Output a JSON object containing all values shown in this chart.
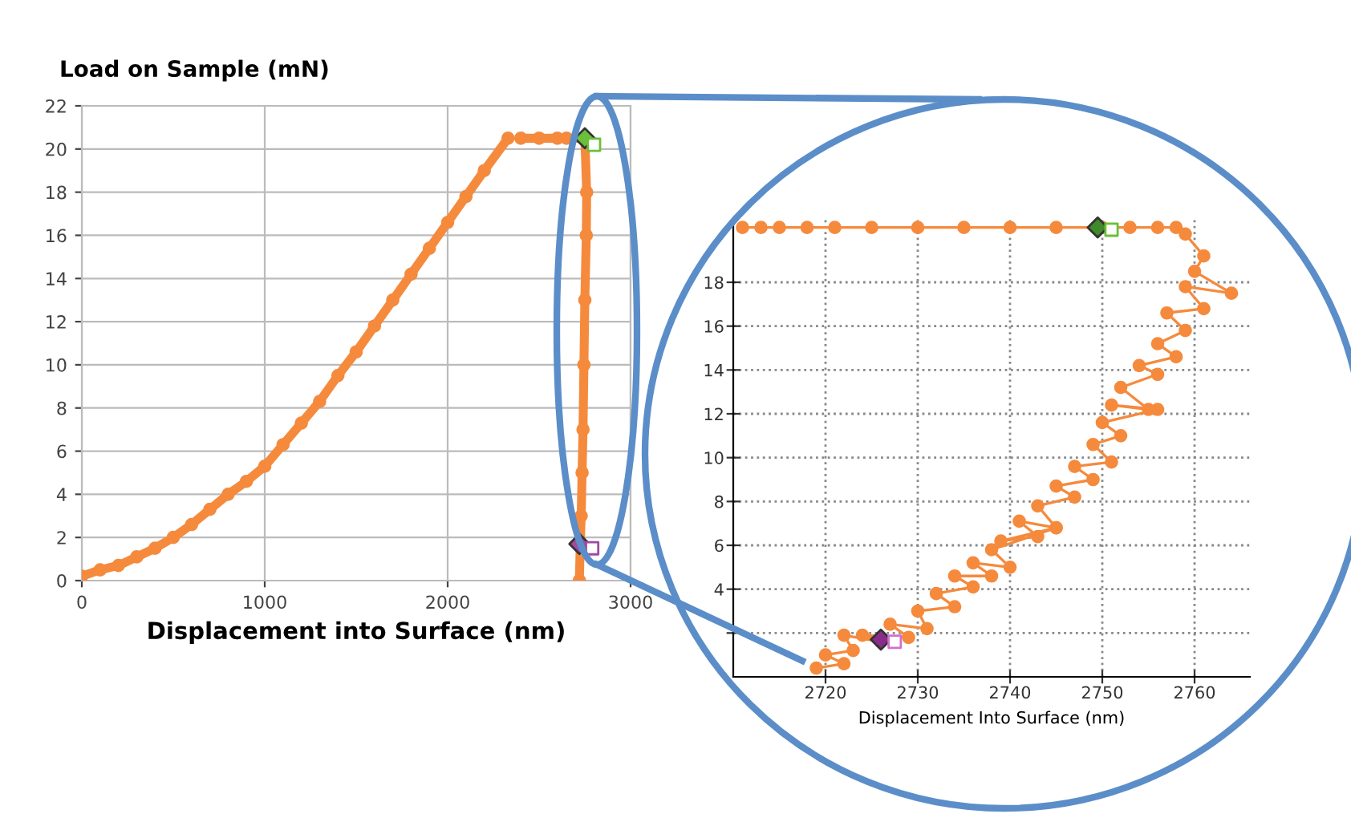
{
  "chart_data": [
    {
      "type": "line",
      "ylabel": "Load on Sample (mN)",
      "xlabel": "Displacement into Surface (nm)",
      "xlim": [
        0,
        3000
      ],
      "ylim": [
        0,
        22
      ],
      "xticks": [
        0,
        1000,
        2000,
        3000
      ],
      "yticks": [
        0,
        2,
        4,
        6,
        8,
        10,
        12,
        14,
        16,
        18,
        20,
        22
      ],
      "grid": true,
      "marker": "circle",
      "line_style": "solid",
      "series": [
        {
          "color": "#f58a3d",
          "x": [
            0,
            100,
            200,
            300,
            400,
            500,
            600,
            700,
            800,
            900,
            1000,
            1100,
            1200,
            1300,
            1400,
            1500,
            1600,
            1700,
            1800,
            1900,
            2000,
            2100,
            2200,
            2330,
            2370,
            2400,
            2500,
            2600,
            2650,
            2750,
            2760,
            2758,
            2750,
            2745,
            2740,
            2735,
            2730,
            2725,
            2720
          ],
          "values": [
            0.2,
            0.5,
            0.7,
            1.1,
            1.5,
            2.0,
            2.6,
            3.3,
            4.0,
            4.6,
            5.3,
            6.3,
            7.3,
            8.3,
            9.5,
            10.6,
            11.8,
            13.0,
            14.2,
            15.4,
            16.6,
            17.8,
            19.0,
            20.5,
            null,
            20.5,
            20.5,
            20.5,
            20.5,
            20.5,
            18,
            16,
            13,
            10,
            7,
            5,
            3,
            1.7,
            0
          ]
        },
        {
          "type": "scatter",
          "marker": "diamond",
          "color": "#6abf3b",
          "x": [
            2750
          ],
          "values": [
            20.5
          ]
        },
        {
          "type": "scatter",
          "marker": "square",
          "color": "#6abf3b",
          "x": [
            2800
          ],
          "values": [
            20.2
          ]
        },
        {
          "type": "scatter",
          "marker": "diamond",
          "color": "#a04aa0",
          "x": [
            2720
          ],
          "values": [
            1.7
          ]
        },
        {
          "type": "scatter",
          "marker": "square",
          "color": "#a04aa0",
          "x": [
            2790
          ],
          "values": [
            1.5
          ]
        }
      ]
    },
    {
      "type": "line",
      "xlabel": "Displacement Into Surface (nm)",
      "xlim": [
        2710,
        2766
      ],
      "ylim": [
        0,
        21
      ],
      "xticks": [
        2720,
        2730,
        2740,
        2750,
        2760
      ],
      "yticks": [
        {
          "value": 2,
          "label": null
        },
        4,
        6,
        8,
        10,
        12,
        14,
        16,
        18
      ],
      "grid": true,
      "marker": "circle",
      "line_style": "solid",
      "series": [
        {
          "color": "#f58a3d",
          "x": [
            2711,
            2713,
            2715,
            2718,
            2721,
            2725,
            2730,
            2735,
            2740,
            2745,
            2750,
            2753,
            2756,
            2758,
            2759,
            2761,
            2760,
            2764,
            2759,
            2761,
            2757,
            2759,
            2756,
            2758,
            2754,
            2756,
            2752,
            2755,
            2751,
            2756,
            2750,
            2752,
            2749,
            2751,
            2747,
            2749,
            2745,
            2747,
            2743,
            2745,
            2741,
            2743,
            2739,
            2745,
            2738,
            2740,
            2736,
            2738,
            2734,
            2736,
            2732,
            2734,
            2730,
            2731,
            2727,
            2729,
            2724,
            2726,
            2722,
            2723,
            2720,
            2722,
            2719
          ],
          "values": [
            20.5,
            20.5,
            20.5,
            20.5,
            20.5,
            20.5,
            20.5,
            20.5,
            20.5,
            20.5,
            20.5,
            20.5,
            20.5,
            20.5,
            20.2,
            19.2,
            18.5,
            17.5,
            17.8,
            16.8,
            16.6,
            15.8,
            15.2,
            14.6,
            14.2,
            13.8,
            13.2,
            12.2,
            12.4,
            12.2,
            11.6,
            11.0,
            10.6,
            9.8,
            9.6,
            9.0,
            8.7,
            8.2,
            7.8,
            6.8,
            7.1,
            6.4,
            6.2,
            6.8,
            5.8,
            5.0,
            5.2,
            4.6,
            4.6,
            4.1,
            3.8,
            3.2,
            3.0,
            2.2,
            2.4,
            1.8,
            1.9,
            1.6,
            1.9,
            1.2,
            1.0,
            0.6,
            0.4
          ]
        },
        {
          "type": "scatter",
          "marker": "diamond",
          "color": "#3f8a2a",
          "x": [
            2749.5
          ],
          "values": [
            20.5
          ]
        },
        {
          "type": "scatter",
          "marker": "square",
          "color": "#6abf3b",
          "x": [
            2751
          ],
          "values": [
            20.4
          ]
        },
        {
          "type": "scatter",
          "marker": "diamond",
          "color": "#8a2d8a",
          "x": [
            2726
          ],
          "values": [
            1.7
          ]
        },
        {
          "type": "scatter",
          "marker": "square",
          "color": "#d070d0",
          "x": [
            2727.5
          ],
          "values": [
            1.6
          ]
        }
      ]
    }
  ]
}
